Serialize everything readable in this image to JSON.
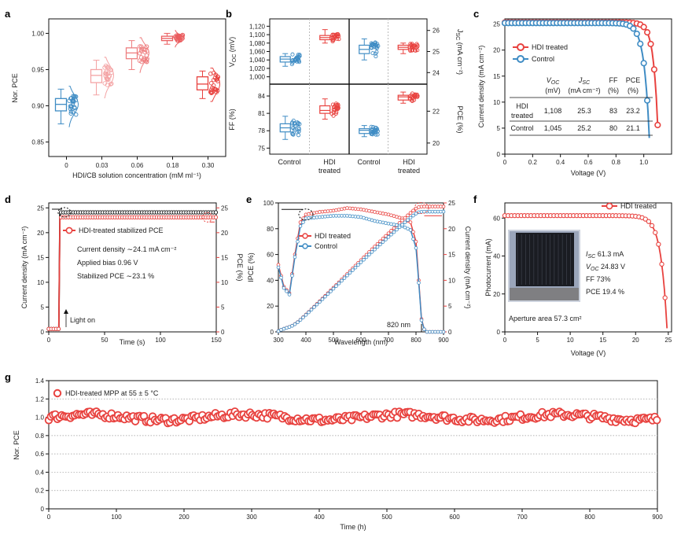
{
  "colors": {
    "red": "#e8423f",
    "blue": "#3f8cc4",
    "pink1": "#f4a4a5",
    "pink2": "#ee7f80",
    "pink3": "#ea5d5f",
    "dark": "#111111",
    "grid": "#9a9a9a"
  },
  "chart_data": [
    {
      "panel": "a",
      "type": "box",
      "xlabel": "HDI/CB solution concentration (mM ml⁻¹)",
      "ylabel": "Nor. PCE",
      "categories": [
        "0",
        "0.03",
        "0.06",
        "0.18",
        "0.30"
      ],
      "ylim": [
        0.83,
        1.02
      ],
      "yticks": [
        "0.85",
        "0.90",
        "0.95",
        "1.00"
      ],
      "ytick_values": [
        0.85,
        0.9,
        0.95,
        1.0
      ],
      "boxes": [
        {
          "min": 0.875,
          "q1": 0.893,
          "median": 0.902,
          "q3": 0.91,
          "max": 0.923
        },
        {
          "min": 0.915,
          "q1": 0.932,
          "median": 0.942,
          "q3": 0.95,
          "max": 0.963
        },
        {
          "min": 0.95,
          "q1": 0.965,
          "median": 0.973,
          "q3": 0.98,
          "max": 0.99
        },
        {
          "min": 0.985,
          "q1": 0.99,
          "median": 0.993,
          "q3": 0.996,
          "max": 1.0
        },
        {
          "min": 0.91,
          "q1": 0.922,
          "median": 0.93,
          "q3": 0.94,
          "max": 0.948
        }
      ]
    },
    {
      "panel": "b",
      "type": "box-grid",
      "categories": [
        "Control",
        "HDI treated"
      ],
      "cells": [
        {
          "label": "V_OC (mV)",
          "side": "left",
          "yticks": [
            "1,000",
            "1,020",
            "1,040",
            "1,060",
            "1,080",
            "1,100",
            "1,120"
          ],
          "ylim": [
            990,
            1130
          ],
          "control": {
            "min": 1025,
            "q1": 1035,
            "median": 1042,
            "q3": 1048,
            "max": 1055
          },
          "hdi": {
            "min": 1080,
            "q1": 1088,
            "median": 1093,
            "q3": 1098,
            "max": 1112
          }
        },
        {
          "label": "J_SC (mA cm⁻²)",
          "side": "right",
          "yticks": [
            "24",
            "25",
            "26"
          ],
          "ylim": [
            23.6,
            26.4
          ],
          "control": {
            "min": 24.6,
            "q1": 24.9,
            "median": 25.1,
            "q3": 25.3,
            "max": 25.6
          },
          "hdi": {
            "min": 24.9,
            "q1": 25.1,
            "median": 25.2,
            "q3": 25.3,
            "max": 25.4
          }
        },
        {
          "label": "FF (%)",
          "side": "left",
          "yticks": [
            "75",
            "78",
            "81",
            "84"
          ],
          "ylim": [
            74.5,
            85.5
          ],
          "control": {
            "min": 76.5,
            "q1": 77.8,
            "median": 78.5,
            "q3": 79.2,
            "max": 80.5
          },
          "hdi": {
            "min": 80.0,
            "q1": 81.0,
            "median": 81.5,
            "q3": 82.3,
            "max": 83.5
          }
        },
        {
          "label": "PCE (%)",
          "side": "right",
          "yticks": [
            "20",
            "22"
          ],
          "ylim": [
            19.5,
            23.5
          ],
          "control": {
            "min": 20.4,
            "q1": 20.6,
            "median": 20.8,
            "q3": 20.9,
            "max": 21.1
          },
          "hdi": {
            "min": 22.5,
            "q1": 22.7,
            "median": 22.9,
            "q3": 23.0,
            "max": 23.2
          }
        }
      ]
    },
    {
      "panel": "c",
      "type": "line",
      "xlabel": "Voltage (V)",
      "ylabel": "Current density (mA cm⁻²)",
      "xlim": [
        0,
        1.2
      ],
      "ylim": [
        0,
        26
      ],
      "xticks": [
        "0",
        "0.2",
        "0.4",
        "0.6",
        "0.8",
        "1.0"
      ],
      "xtick_values": [
        0,
        0.2,
        0.4,
        0.6,
        0.8,
        1.0
      ],
      "yticks": [
        "0",
        "5",
        "10",
        "15",
        "20",
        "25"
      ],
      "ytick_values": [
        0,
        5,
        10,
        15,
        20,
        25
      ],
      "series": [
        {
          "name": "HDI treated",
          "jsc": 25.3,
          "voc": 1.108,
          "vk": 0.032
        },
        {
          "name": "Control",
          "jsc": 25.2,
          "voc": 1.045,
          "vk": 0.038
        }
      ],
      "table": {
        "headers": [
          "V_OC (mV)",
          "J_SC (mA cm⁻²)",
          "FF (%)",
          "PCE (%)"
        ],
        "rows": [
          {
            "label": "HDI treated",
            "values": [
              "1,108",
              "25.3",
              "83",
              "23.2"
            ]
          },
          {
            "label": "Control",
            "values": [
              "1,045",
              "25.2",
              "80",
              "21.1"
            ]
          }
        ]
      }
    },
    {
      "panel": "d",
      "type": "line",
      "xlabel": "Time (s)",
      "ylabel": "Current density (mA cm⁻²)",
      "y2label": "PCE (%)",
      "xlim": [
        0,
        150
      ],
      "ylim": [
        0,
        26
      ],
      "y2lim": [
        0,
        26
      ],
      "xticks": [
        "0",
        "50",
        "100",
        "150"
      ],
      "xtick_values": [
        0,
        50,
        100,
        150
      ],
      "yticks": [
        "0",
        "5",
        "10",
        "15",
        "20",
        "25"
      ],
      "ytick_values": [
        0,
        5,
        10,
        15,
        20,
        25
      ],
      "y2ticks": [
        "0",
        "5",
        "10",
        "15",
        "20",
        "25"
      ],
      "series": [
        {
          "name": "Current density",
          "on_time": 10,
          "dark": 0.6,
          "steady": 24.1
        },
        {
          "name": "HDI-treated stabilized PCE",
          "on_time": 10,
          "dark": 0.6,
          "steady": 23.1
        }
      ],
      "legend": "HDI-treated stabilized PCE",
      "annotations": [
        "Current density ∼24.1 mA cm⁻²",
        "Applied bias 0.96 V",
        "Stabilized PCE ∼23.1 %",
        "Light on"
      ]
    },
    {
      "panel": "e",
      "type": "line",
      "xlabel": "Wavelength (nm)",
      "ylabel": "IPCE (%)",
      "y2label": "Current density (mA cm⁻²)",
      "xlim": [
        300,
        900
      ],
      "ylim": [
        0,
        100
      ],
      "y2lim": [
        0,
        25
      ],
      "xticks": [
        "300",
        "400",
        "500",
        "600",
        "700",
        "800",
        "900"
      ],
      "xtick_values": [
        300,
        400,
        500,
        600,
        700,
        800,
        900
      ],
      "yticks": [
        "0",
        "20",
        "40",
        "60",
        "80",
        "100"
      ],
      "ytick_values": [
        0,
        20,
        40,
        60,
        80,
        100
      ],
      "y2ticks": [
        "0",
        "5",
        "10",
        "15",
        "20",
        "25"
      ],
      "y2tick_values": [
        0,
        5,
        10,
        15,
        20,
        25
      ],
      "ipce_hdi": [
        [
          300,
          52
        ],
        [
          320,
          35
        ],
        [
          340,
          30
        ],
        [
          360,
          60
        ],
        [
          380,
          85
        ],
        [
          400,
          91
        ],
        [
          450,
          93
        ],
        [
          500,
          94
        ],
        [
          550,
          96
        ],
        [
          600,
          95
        ],
        [
          650,
          93
        ],
        [
          700,
          91
        ],
        [
          750,
          88
        ],
        [
          780,
          85
        ],
        [
          800,
          70
        ],
        [
          810,
          40
        ],
        [
          820,
          10
        ],
        [
          830,
          2
        ],
        [
          840,
          0
        ]
      ],
      "ipce_control": [
        [
          300,
          50
        ],
        [
          320,
          34
        ],
        [
          340,
          29
        ],
        [
          360,
          58
        ],
        [
          380,
          82
        ],
        [
          400,
          88
        ],
        [
          450,
          89
        ],
        [
          500,
          90
        ],
        [
          550,
          90
        ],
        [
          600,
          89
        ],
        [
          650,
          86
        ],
        [
          700,
          84
        ],
        [
          750,
          82
        ],
        [
          780,
          79
        ],
        [
          800,
          65
        ],
        [
          810,
          38
        ],
        [
          820,
          9
        ],
        [
          830,
          2
        ],
        [
          840,
          0
        ]
      ],
      "integrated_hdi_final": 24.3,
      "integrated_control_final": 23.3,
      "legend": [
        "HDI treated",
        "Control"
      ],
      "annotation": "820 nm"
    },
    {
      "panel": "f",
      "type": "line",
      "xlabel": "Voltage (V)",
      "ylabel": "Photocurrent (mA)",
      "xlim": [
        0,
        25.5
      ],
      "ylim": [
        0,
        68
      ],
      "xticks": [
        "0",
        "5",
        "10",
        "15",
        "20",
        "25"
      ],
      "xtick_values": [
        0,
        5,
        10,
        15,
        20,
        25
      ],
      "yticks": [
        "0",
        "20",
        "40",
        "60"
      ],
      "ytick_values": [
        0,
        20,
        40,
        60
      ],
      "series": [
        {
          "name": "HDI treated",
          "isc": 61.3,
          "voc": 24.83
        }
      ],
      "params": [
        "I_SC  61.3 mA",
        "V_OC  24.83 V",
        "FF  73%",
        "PCE 19.4 %"
      ],
      "annotation": "Aperture area 57.3 cm²"
    },
    {
      "panel": "g",
      "type": "scatter",
      "xlabel": "Time (h)",
      "ylabel": "Nor. PCE",
      "xlim": [
        0,
        900
      ],
      "ylim": [
        0,
        1.4
      ],
      "xticks": [
        "0",
        "100",
        "200",
        "300",
        "400",
        "500",
        "600",
        "700",
        "800",
        "900"
      ],
      "xtick_values": [
        0,
        100,
        200,
        300,
        400,
        500,
        600,
        700,
        800,
        900
      ],
      "yticks": [
        "0",
        "0.2",
        "0.4",
        "0.6",
        "0.8",
        "1.0",
        "1.2",
        "1.4"
      ],
      "ytick_values": [
        0,
        0.2,
        0.4,
        0.6,
        0.8,
        1.0,
        1.2,
        1.4
      ],
      "series": [
        {
          "name": "HDI-treated MPP at 55 ± 5 °C",
          "mean": 1.0,
          "spread": 0.035
        }
      ],
      "grid": true
    }
  ],
  "labels": {
    "a": "a",
    "b": "b",
    "c": "c",
    "d": "d",
    "e": "e",
    "f": "f",
    "g": "g",
    "a_xlabel": "HDI/CB solution concentration (mM ml⁻¹)",
    "a_ylabel": "Nor. PCE",
    "b_voc": "V",
    "b_voc_sub": "OC",
    "b_voc_unit": " (mV)",
    "b_jsc": "J",
    "b_jsc_sub": "SC",
    "b_jsc_unit": " (mA cm⁻²)",
    "b_ff": "FF (%)",
    "b_pce": "PCE (%)",
    "b_control": "Control",
    "b_hdi1": "HDI",
    "b_hdi2": "treated",
    "c_ylabel": "Current density (mA cm⁻²)",
    "c_xlabel": "Voltage (V)",
    "c_leg1": "HDI treated",
    "c_leg2": "Control",
    "c_h_v": "V",
    "c_h_v_sub": "OC",
    "c_h_j": "J",
    "c_h_j_sub": "SC",
    "c_h_ff": "FF",
    "c_h_pce": "PCE",
    "c_u_v": "(mV)",
    "c_u_j": "(mA cm⁻²)",
    "c_u_ff": "(%)",
    "c_u_pce": "(%)",
    "c_r1a": "HDI",
    "c_r1b": "treated",
    "c_r2": "Control",
    "c_r1v": "1,108",
    "c_r1j": "25.3",
    "c_r1f": "83",
    "c_r1p": "23.2",
    "c_r2v": "1,045",
    "c_r2j": "25.2",
    "c_r2f": "80",
    "c_r2p": "21.1",
    "d_ylabel": "Current density (mA cm⁻²)",
    "d_y2label": "PCE (%)",
    "d_xlabel": "Time (s)",
    "d_leg": "HDI-treated stabilized PCE",
    "d_ann1": "Current density ∼24.1 mA cm⁻²",
    "d_ann2": "Applied bias 0.96 V",
    "d_ann3": "Stabilized PCE ∼23.1 %",
    "d_ann4": "Light on",
    "e_ylabel": "IPCE (%)",
    "e_y2label": "Current density (mA cm⁻²)",
    "e_xlabel": "Wavelength (nm)",
    "e_leg1": "HDI treated",
    "e_leg2": "Control",
    "e_ann": "820 nm",
    "f_ylabel": "Photocurrent (mA)",
    "f_xlabel": "Voltage (V)",
    "f_leg": "HDI treated",
    "f_p1a": "I",
    "f_p1s": "SC",
    "f_p1v": "  61.3 mA",
    "f_p2a": "V",
    "f_p2s": "OC",
    "f_p2v": "  24.83 V",
    "f_p3": "FF  73%",
    "f_p4": "PCE 19.4 %",
    "f_ann": "Aperture area 57.3 cm²",
    "g_ylabel": "Nor. PCE",
    "g_xlabel": "Time (h)",
    "g_leg": "HDI-treated MPP at 55 ± 5 °C"
  }
}
